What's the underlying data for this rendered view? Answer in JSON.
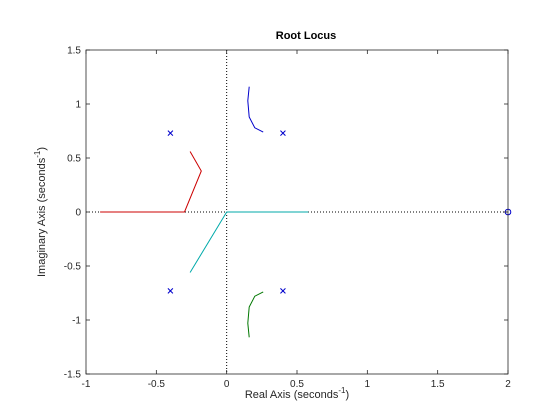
{
  "chart_data": {
    "type": "line",
    "title": "Root Locus",
    "xlabel": "Real Axis (seconds",
    "ylabel": "Imaginary Axis (seconds",
    "unit_exponent": "-1",
    "label_close": ")",
    "xlim": [
      -1,
      2
    ],
    "ylim": [
      -1.5,
      1.5
    ],
    "xticks": [
      -1,
      -0.5,
      0,
      0.5,
      1,
      1.5,
      2
    ],
    "xtick_labels": [
      "-1",
      "-0.5",
      "0",
      "0.5",
      "1",
      "1.5",
      "2"
    ],
    "yticks": [
      -1.5,
      -1,
      -0.5,
      0,
      0.5,
      1,
      1.5
    ],
    "ytick_labels": [
      "-1.5",
      "-1",
      "-0.5",
      "0",
      "0.5",
      "1",
      "1.5"
    ],
    "grid": false,
    "reference_lines": {
      "x": 0,
      "y": 0,
      "style": "dotted"
    },
    "poles": [
      {
        "x": -0.4,
        "y": 0.73
      },
      {
        "x": -0.4,
        "y": -0.73
      },
      {
        "x": 0.4,
        "y": 0.73
      },
      {
        "x": 0.4,
        "y": -0.73
      }
    ],
    "zeros": [
      {
        "x": 2,
        "y": 0
      }
    ],
    "series": [
      {
        "color": "#0000cc",
        "x": [
          0.16,
          0.15,
          0.16,
          0.2,
          0.26
        ],
        "y": [
          1.16,
          1.03,
          0.88,
          0.78,
          0.74
        ]
      },
      {
        "color": "#007700",
        "x": [
          0.16,
          0.15,
          0.16,
          0.2,
          0.26
        ],
        "y": [
          -1.16,
          -1.03,
          -0.88,
          -0.78,
          -0.74
        ]
      },
      {
        "color": "#cc0000",
        "x": [
          -0.9,
          -0.3,
          -0.18,
          -0.26
        ],
        "y": [
          0,
          0,
          0.38,
          0.56
        ]
      },
      {
        "color": "#00aaaa",
        "x": [
          0.58,
          0.0,
          -0.26
        ],
        "y": [
          0,
          0,
          -0.56
        ]
      }
    ],
    "colors": {
      "marker": "#0000cc",
      "axes": "#262626",
      "reference": "#000000"
    }
  }
}
